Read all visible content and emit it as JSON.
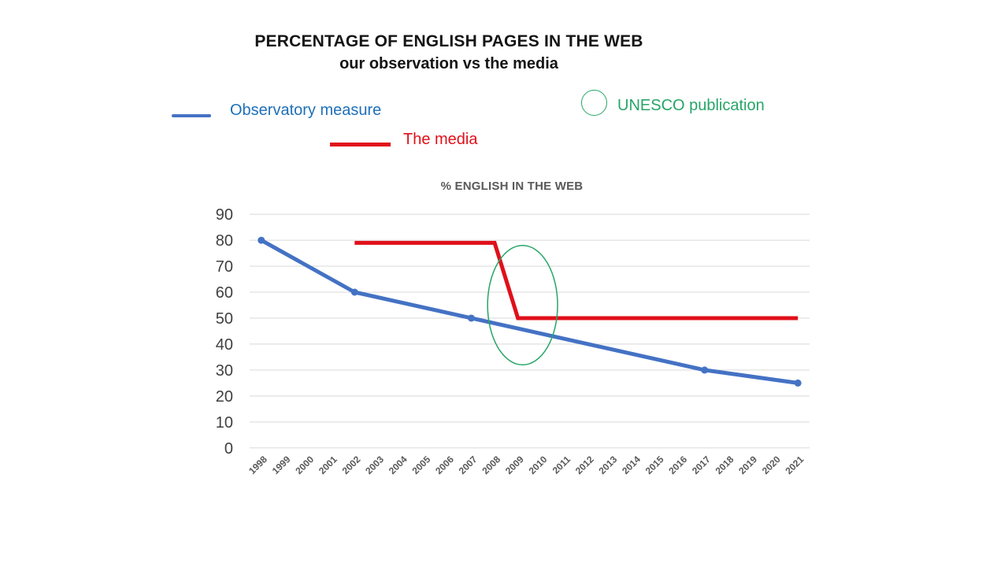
{
  "slide": {
    "title_line1": "PERCENTAGE OF ENGLISH PAGES IN THE WEB",
    "title_line2": "our observation vs the media"
  },
  "legend": {
    "observatory_label": "Observatory measure",
    "media_label": "The media",
    "unesco_label": "UNESCO publication"
  },
  "colors": {
    "observatory": "#4472C4",
    "observatory_text": "#1F6FB8",
    "media": "#E0101A",
    "unesco": "#27A567",
    "grid": "#D9D9D9",
    "y_tick_text": "#404040",
    "x_tick_text": "#595959",
    "chart_title_text": "#595959"
  },
  "chart_data": {
    "type": "line",
    "title": "% ENGLISH IN THE WEB",
    "categories": [
      "1998",
      "1999",
      "2000",
      "2001",
      "2002",
      "2003",
      "2004",
      "2005",
      "2006",
      "2007",
      "2008",
      "2009",
      "2010",
      "2011",
      "2012",
      "2013",
      "2014",
      "2015",
      "2016",
      "2017",
      "2018",
      "2019",
      "2020",
      "2021"
    ],
    "ylim": [
      0,
      90
    ],
    "y_ticks": [
      0,
      10,
      20,
      30,
      40,
      50,
      60,
      70,
      80,
      90
    ],
    "grid": true,
    "legend_position": "top-floating",
    "series": [
      {
        "name": "Observatory measure",
        "color": "#4472C4",
        "marker": true,
        "stroke_width": 5,
        "points": [
          [
            "1998",
            80
          ],
          [
            "2002",
            60
          ],
          [
            "2007",
            50
          ],
          [
            "2017",
            30
          ],
          [
            "2021",
            25
          ]
        ]
      },
      {
        "name": "The media",
        "color": "#E0101A",
        "marker": false,
        "stroke_width": 5,
        "points": [
          [
            "2002",
            79
          ],
          [
            "2008",
            79
          ],
          [
            "2009",
            50
          ],
          [
            "2021",
            50
          ]
        ]
      }
    ],
    "annotation": {
      "label": "UNESCO publication",
      "shape": "ellipse",
      "color": "#27A567",
      "center_year": 2009.2,
      "center_value": 55,
      "radius_years": 1.5,
      "radius_values": 23
    }
  }
}
